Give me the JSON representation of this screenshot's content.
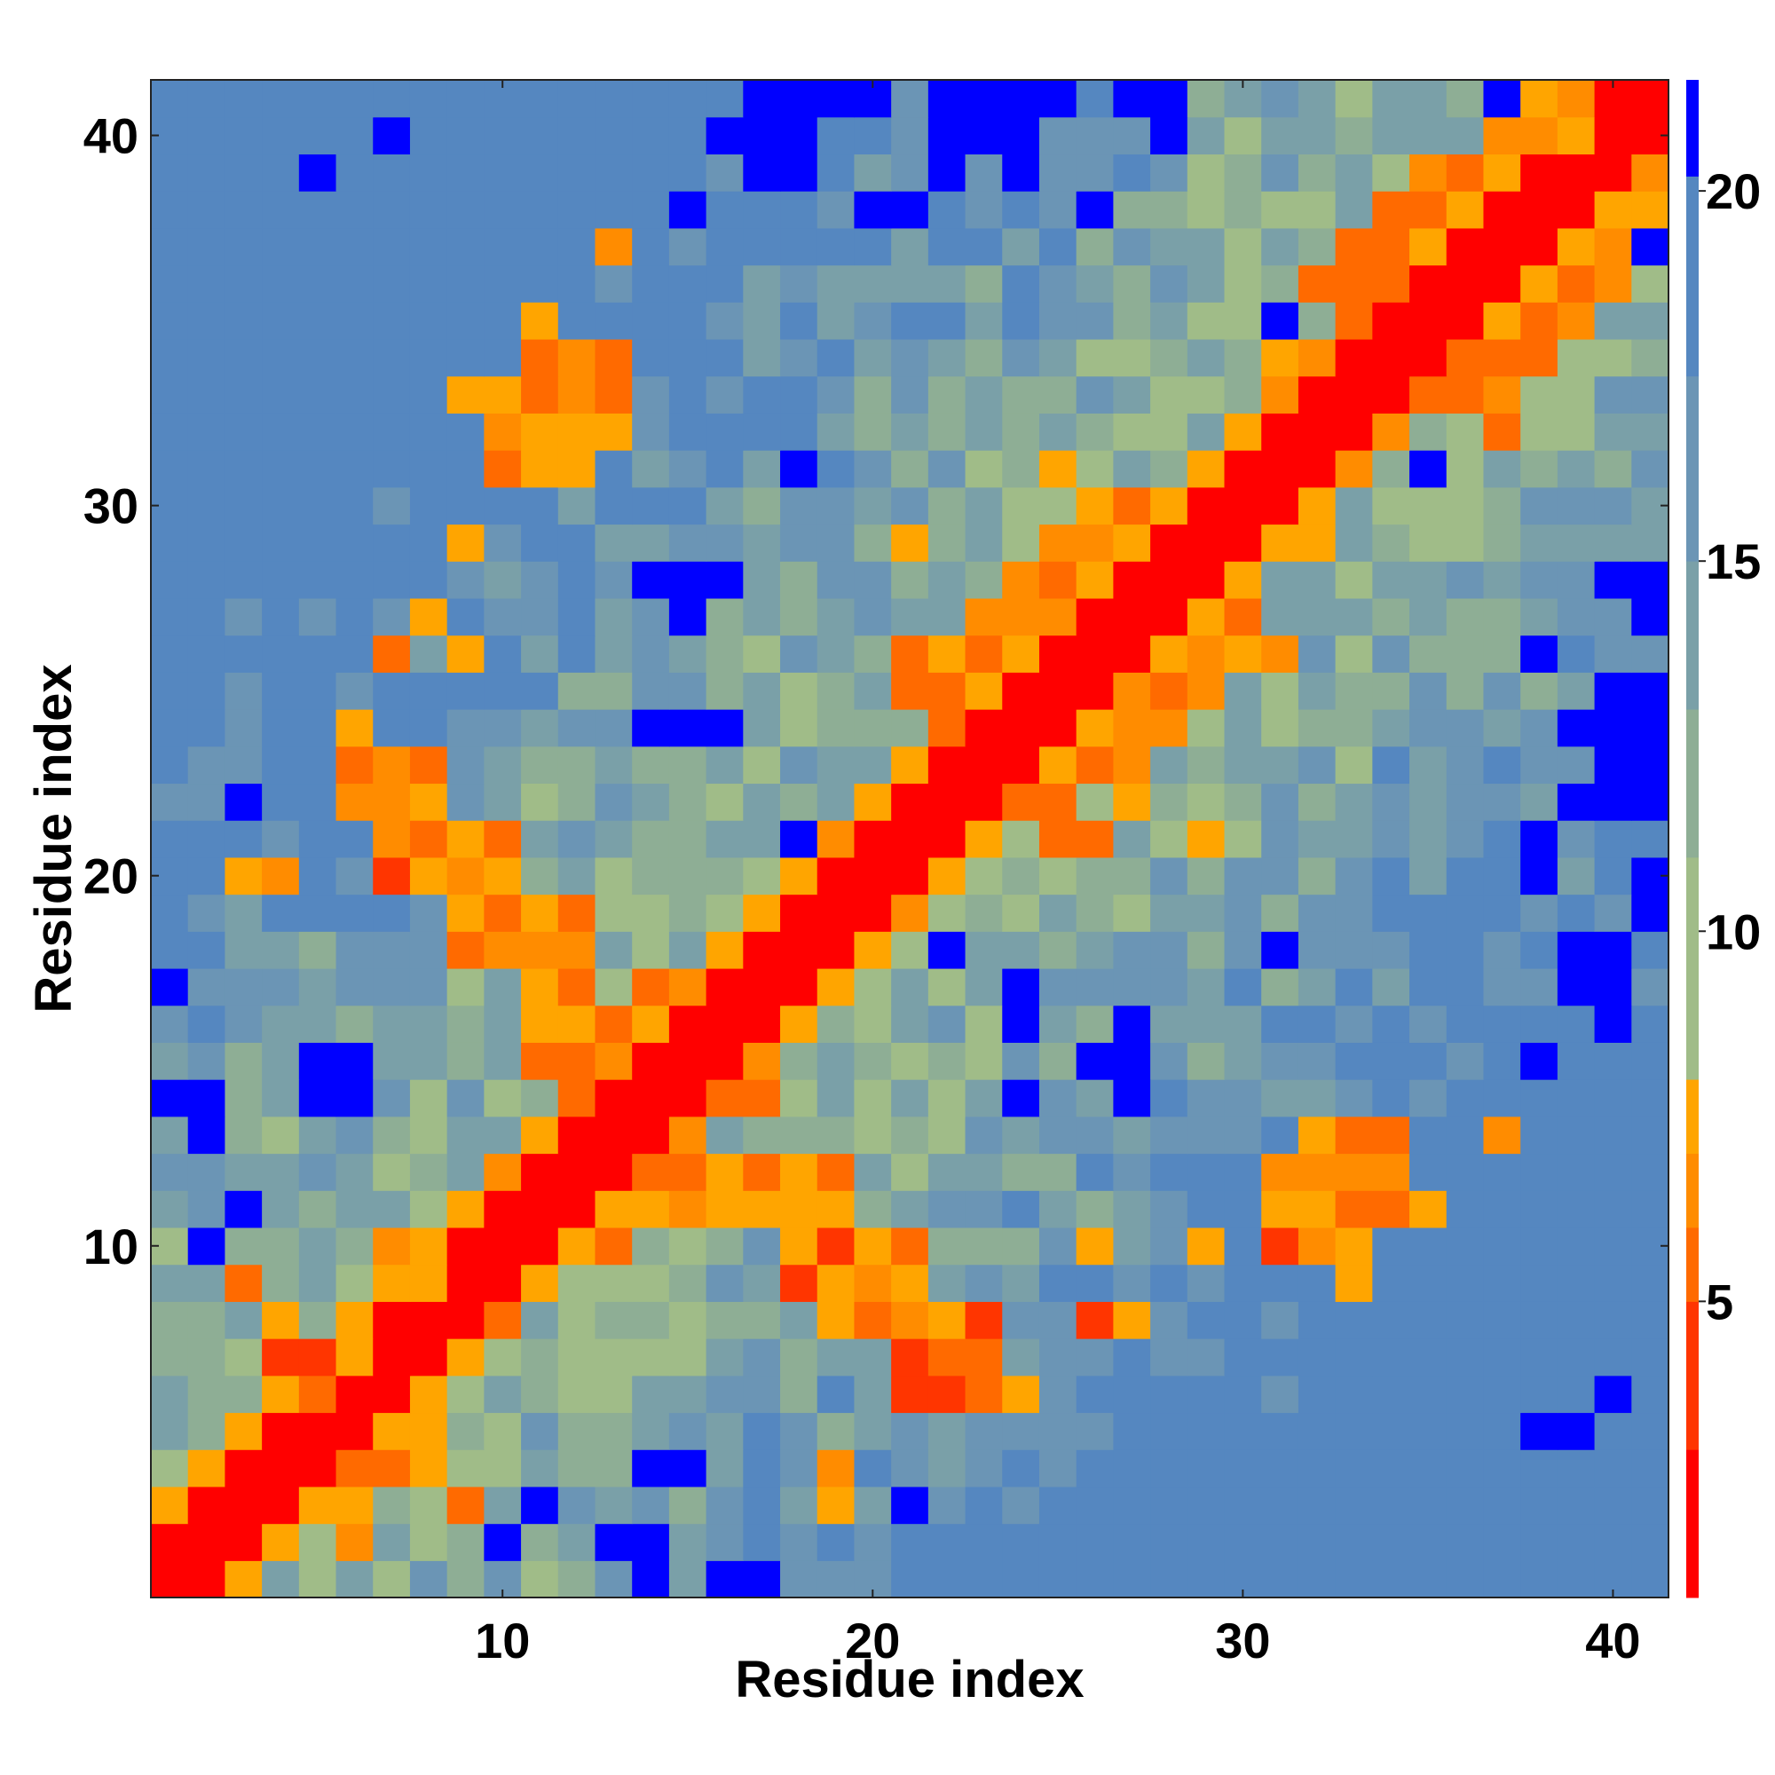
{
  "chart_data": {
    "type": "heatmap",
    "title": "",
    "xlabel": "Residue index",
    "ylabel": "Residue index",
    "n_residues": 41,
    "x_ticks": [
      10,
      20,
      30,
      40
    ],
    "y_ticks": [
      10,
      20,
      30,
      40
    ],
    "x_tick_labels": [
      "10",
      "20",
      "30",
      "40"
    ],
    "y_tick_labels": [
      "10",
      "20",
      "30",
      "40"
    ],
    "colorbar": {
      "range": [
        1,
        21.5
      ],
      "ticks": [
        5,
        10,
        15,
        20
      ],
      "tick_labels": [
        "5",
        "10",
        "15",
        "20"
      ],
      "bins": [
        {
          "max": 3,
          "color": "#ff0000"
        },
        {
          "max": 5,
          "color": "#ff3500"
        },
        {
          "max": 6,
          "color": "#ff6a00"
        },
        {
          "max": 7,
          "color": "#ff8c00"
        },
        {
          "max": 8,
          "color": "#ffa500"
        },
        {
          "max": 11,
          "color": "#a0bc88"
        },
        {
          "max": 13,
          "color": "#8eae95"
        },
        {
          "max": 15,
          "color": "#7aa0a8"
        },
        {
          "max": 17.5,
          "color": "#6b95b5"
        },
        {
          "max": 20.2,
          "color": "#5587c0"
        },
        {
          "max": 21.5,
          "color": "#0000ff"
        }
      ]
    },
    "blue_cells": [
      [
        1,
        14
      ],
      [
        1,
        16
      ],
      [
        1,
        17
      ],
      [
        2,
        10
      ],
      [
        2,
        13
      ],
      [
        2,
        14
      ],
      [
        3,
        11
      ],
      [
        3,
        21
      ],
      [
        4,
        14
      ],
      [
        4,
        15
      ],
      [
        5,
        38
      ],
      [
        5,
        39
      ],
      [
        6,
        40
      ],
      [
        10,
        2
      ],
      [
        11,
        3
      ],
      [
        13,
        2
      ],
      [
        14,
        1
      ],
      [
        14,
        2
      ],
      [
        14,
        5
      ],
      [
        14,
        6
      ],
      [
        14,
        24
      ],
      [
        14,
        27
      ],
      [
        15,
        5
      ],
      [
        15,
        6
      ],
      [
        15,
        26
      ],
      [
        15,
        27
      ],
      [
        15,
        38
      ],
      [
        16,
        24
      ],
      [
        16,
        27
      ],
      [
        16,
        40
      ],
      [
        17,
        1
      ],
      [
        17,
        24
      ],
      [
        17,
        39
      ],
      [
        17,
        40
      ],
      [
        18,
        22
      ],
      [
        18,
        31
      ],
      [
        18,
        39
      ],
      [
        18,
        40
      ],
      [
        19,
        41
      ],
      [
        20,
        41
      ],
      [
        20,
        38
      ],
      [
        21,
        18
      ],
      [
        21,
        38
      ],
      [
        22,
        3
      ],
      [
        22,
        39
      ],
      [
        22,
        40
      ],
      [
        22,
        41
      ],
      [
        23,
        40
      ],
      [
        23,
        41
      ],
      [
        24,
        14
      ],
      [
        24,
        15
      ],
      [
        24,
        16
      ],
      [
        24,
        39
      ],
      [
        24,
        40
      ],
      [
        24,
        41
      ],
      [
        25,
        40
      ],
      [
        25,
        41
      ],
      [
        26,
        38
      ],
      [
        27,
        15
      ],
      [
        27,
        41
      ],
      [
        28,
        14
      ],
      [
        28,
        15
      ],
      [
        28,
        16
      ],
      [
        28,
        40
      ],
      [
        28,
        41
      ],
      [
        31,
        18
      ],
      [
        31,
        35
      ],
      [
        35,
        31
      ],
      [
        37,
        41
      ],
      [
        38,
        15
      ],
      [
        38,
        20
      ],
      [
        38,
        21
      ],
      [
        38,
        26
      ],
      [
        39,
        5
      ],
      [
        39,
        17
      ],
      [
        39,
        18
      ],
      [
        39,
        22
      ],
      [
        39,
        24
      ],
      [
        40,
        7
      ],
      [
        40,
        16
      ],
      [
        40,
        17
      ],
      [
        40,
        18
      ],
      [
        40,
        22
      ],
      [
        40,
        23
      ],
      [
        40,
        24
      ],
      [
        40,
        28
      ],
      [
        41,
        17
      ],
      [
        41,
        18
      ],
      [
        41,
        19
      ],
      [
        41,
        20
      ],
      [
        41,
        22
      ],
      [
        41,
        23
      ],
      [
        41,
        24
      ],
      [
        41,
        25
      ],
      [
        41,
        27
      ],
      [
        41,
        28
      ],
      [
        41,
        37
      ]
    ],
    "hot_cells": [
      [
        1,
        3,
        8
      ],
      [
        2,
        4,
        8
      ],
      [
        2,
        6,
        7
      ],
      [
        3,
        5,
        8
      ],
      [
        3,
        9,
        6
      ],
      [
        3,
        19,
        8
      ],
      [
        4,
        6,
        6
      ],
      [
        4,
        7,
        6
      ],
      [
        4,
        19,
        7
      ],
      [
        5,
        7,
        8
      ],
      [
        6,
        5,
        6
      ],
      [
        6,
        8,
        8
      ],
      [
        6,
        21,
        5
      ],
      [
        6,
        22,
        5
      ],
      [
        6,
        23,
        6
      ],
      [
        6,
        24,
        8
      ],
      [
        7,
        4,
        5
      ],
      [
        7,
        5,
        5
      ],
      [
        7,
        6,
        8
      ],
      [
        7,
        9,
        8
      ],
      [
        7,
        21,
        4
      ],
      [
        7,
        22,
        6
      ],
      [
        7,
        23,
        6
      ],
      [
        8,
        6,
        8
      ],
      [
        8,
        10,
        6
      ],
      [
        8,
        19,
        8
      ],
      [
        8,
        20,
        6
      ],
      [
        8,
        21,
        7
      ],
      [
        8,
        22,
        8
      ],
      [
        8,
        23,
        5
      ],
      [
        8,
        26,
        5
      ],
      [
        8,
        27,
        8
      ],
      [
        9,
        3,
        6
      ],
      [
        9,
        8,
        8
      ],
      [
        9,
        11,
        8
      ],
      [
        9,
        18,
        5
      ],
      [
        9,
        19,
        8
      ],
      [
        9,
        20,
        7
      ],
      [
        9,
        21,
        8
      ],
      [
        9,
        33,
        8
      ],
      [
        10,
        7,
        7
      ],
      [
        10,
        13,
        6
      ],
      [
        10,
        18,
        8
      ],
      [
        10,
        19,
        5
      ],
      [
        10,
        20,
        8
      ],
      [
        10,
        21,
        6
      ],
      [
        10,
        26,
        8
      ],
      [
        10,
        29,
        8
      ],
      [
        10,
        31,
        5
      ],
      [
        10,
        32,
        7
      ],
      [
        10,
        33,
        8
      ],
      [
        11,
        9,
        8
      ],
      [
        11,
        14,
        8
      ],
      [
        11,
        15,
        7
      ],
      [
        11,
        16,
        8
      ],
      [
        11,
        17,
        8
      ],
      [
        11,
        18,
        8
      ],
      [
        11,
        19,
        8
      ],
      [
        11,
        31,
        8
      ],
      [
        11,
        32,
        8
      ],
      [
        11,
        33,
        6
      ],
      [
        11,
        34,
        6
      ],
      [
        11,
        35,
        8
      ],
      [
        12,
        10,
        7
      ],
      [
        12,
        14,
        6
      ],
      [
        12,
        15,
        6
      ],
      [
        12,
        16,
        8
      ],
      [
        12,
        17,
        6
      ],
      [
        12,
        18,
        8
      ],
      [
        12,
        19,
        6
      ],
      [
        12,
        31,
        7
      ],
      [
        12,
        32,
        7
      ],
      [
        12,
        33,
        7
      ],
      [
        12,
        34,
        7
      ],
      [
        13,
        11,
        8
      ],
      [
        13,
        15,
        7
      ],
      [
        13,
        33,
        6
      ],
      [
        13,
        34,
        6
      ],
      [
        13,
        37,
        7
      ],
      [
        13,
        32,
        8
      ],
      [
        14,
        12,
        6
      ],
      [
        14,
        16,
        6
      ],
      [
        14,
        17,
        6
      ],
      [
        15,
        11,
        6
      ],
      [
        15,
        12,
        6
      ],
      [
        15,
        13,
        7
      ],
      [
        15,
        17,
        7
      ],
      [
        16,
        11,
        8
      ],
      [
        16,
        12,
        8
      ],
      [
        16,
        13,
        6
      ],
      [
        16,
        18,
        8
      ],
      [
        17,
        11,
        8
      ],
      [
        17,
        12,
        6
      ],
      [
        17,
        14,
        6
      ],
      [
        17,
        15,
        7
      ],
      [
        17,
        19,
        8
      ],
      [
        18,
        9,
        6
      ],
      [
        18,
        10,
        7
      ],
      [
        18,
        11,
        7
      ],
      [
        18,
        12,
        7
      ],
      [
        18,
        16,
        8
      ],
      [
        18,
        20,
        8
      ],
      [
        19,
        9,
        8
      ],
      [
        19,
        10,
        6
      ],
      [
        19,
        11,
        8
      ],
      [
        19,
        12,
        6
      ],
      [
        19,
        17,
        8
      ],
      [
        19,
        21,
        7
      ],
      [
        20,
        3,
        8
      ],
      [
        20,
        4,
        7
      ],
      [
        20,
        7,
        5
      ],
      [
        20,
        8,
        8
      ],
      [
        20,
        9,
        7
      ],
      [
        20,
        10,
        8
      ],
      [
        20,
        18,
        8
      ],
      [
        20,
        22,
        8
      ],
      [
        21,
        7,
        7
      ],
      [
        21,
        8,
        6
      ],
      [
        21,
        9,
        8
      ],
      [
        21,
        10,
        6
      ],
      [
        21,
        19,
        7
      ],
      [
        21,
        23,
        8
      ],
      [
        21,
        25,
        6
      ],
      [
        21,
        26,
        6
      ],
      [
        21,
        29,
        8
      ],
      [
        22,
        6,
        7
      ],
      [
        22,
        7,
        7
      ],
      [
        22,
        8,
        8
      ],
      [
        22,
        20,
        8
      ],
      [
        22,
        24,
        6
      ],
      [
        22,
        25,
        6
      ],
      [
        22,
        27,
        8
      ],
      [
        23,
        6,
        6
      ],
      [
        23,
        7,
        7
      ],
      [
        23,
        8,
        6
      ],
      [
        23,
        21,
        8
      ],
      [
        23,
        25,
        8
      ],
      [
        23,
        26,
        6
      ],
      [
        23,
        27,
        7
      ],
      [
        24,
        6,
        8
      ],
      [
        24,
        22,
        6
      ],
      [
        24,
        26,
        8
      ],
      [
        24,
        27,
        7
      ],
      [
        24,
        28,
        7
      ],
      [
        25,
        21,
        6
      ],
      [
        25,
        22,
        6
      ],
      [
        25,
        23,
        8
      ],
      [
        25,
        27,
        7
      ],
      [
        25,
        28,
        6
      ],
      [
        25,
        29,
        7
      ],
      [
        26,
        7,
        6
      ],
      [
        26,
        9,
        8
      ],
      [
        26,
        21,
        6
      ],
      [
        26,
        22,
        8
      ],
      [
        26,
        23,
        6
      ],
      [
        26,
        24,
        8
      ],
      [
        26,
        28,
        8
      ],
      [
        26,
        29,
        7
      ],
      [
        26,
        30,
        8
      ],
      [
        26,
        31,
        7
      ],
      [
        27,
        8,
        8
      ],
      [
        27,
        23,
        7
      ],
      [
        27,
        24,
        7
      ],
      [
        27,
        25,
        7
      ],
      [
        27,
        29,
        8
      ],
      [
        27,
        30,
        6
      ],
      [
        28,
        24,
        7
      ],
      [
        28,
        25,
        6
      ],
      [
        28,
        26,
        8
      ],
      [
        28,
        30,
        8
      ],
      [
        29,
        9,
        8
      ],
      [
        29,
        21,
        8
      ],
      [
        29,
        25,
        7
      ],
      [
        29,
        26,
        7
      ],
      [
        29,
        27,
        8
      ],
      [
        29,
        31,
        8
      ],
      [
        30,
        26,
        8
      ],
      [
        30,
        27,
        6
      ],
      [
        30,
        28,
        8
      ],
      [
        30,
        32,
        8
      ],
      [
        31,
        10,
        6
      ],
      [
        31,
        11,
        8
      ],
      [
        31,
        12,
        8
      ],
      [
        31,
        25,
        8
      ],
      [
        31,
        29,
        8
      ],
      [
        31,
        33,
        7
      ],
      [
        32,
        10,
        7
      ],
      [
        32,
        11,
        8
      ],
      [
        32,
        12,
        8
      ],
      [
        32,
        13,
        8
      ],
      [
        32,
        30,
        8
      ],
      [
        32,
        34,
        7
      ],
      [
        32,
        37,
        6
      ],
      [
        33,
        9,
        8
      ],
      [
        33,
        10,
        8
      ],
      [
        33,
        11,
        6
      ],
      [
        33,
        12,
        7
      ],
      [
        33,
        13,
        6
      ],
      [
        33,
        31,
        7
      ],
      [
        33,
        35,
        6
      ],
      [
        33,
        36,
        6
      ],
      [
        33,
        37,
        7
      ],
      [
        34,
        11,
        6
      ],
      [
        34,
        12,
        7
      ],
      [
        34,
        13,
        6
      ],
      [
        34,
        32,
        7
      ],
      [
        34,
        36,
        6
      ],
      [
        34,
        37,
        6
      ],
      [
        34,
        38,
        6
      ],
      [
        35,
        11,
        8
      ],
      [
        35,
        33,
        6
      ],
      [
        35,
        37,
        8
      ],
      [
        35,
        38,
        6
      ],
      [
        35,
        39,
        7
      ],
      [
        36,
        32,
        6
      ],
      [
        36,
        33,
        6
      ],
      [
        36,
        34,
        6
      ],
      [
        36,
        38,
        8
      ],
      [
        36,
        39,
        6
      ],
      [
        36,
        40,
        7
      ],
      [
        37,
        13,
        7
      ],
      [
        37,
        33,
        6
      ],
      [
        37,
        34,
        6
      ],
      [
        37,
        35,
        8
      ],
      [
        37,
        39,
        8
      ],
      [
        37,
        40,
        7
      ],
      [
        38,
        34,
        6
      ],
      [
        38,
        35,
        6
      ],
      [
        38,
        36,
        8
      ],
      [
        38,
        40,
        8
      ],
      [
        38,
        41,
        8
      ],
      [
        39,
        35,
        7
      ],
      [
        39,
        36,
        6
      ],
      [
        39,
        37,
        8
      ],
      [
        39,
        41,
        7
      ],
      [
        40,
        37,
        7
      ],
      [
        40,
        38,
        7
      ],
      [
        40,
        39,
        8
      ],
      [
        41,
        38,
        8
      ],
      [
        41,
        39,
        7
      ]
    ]
  }
}
